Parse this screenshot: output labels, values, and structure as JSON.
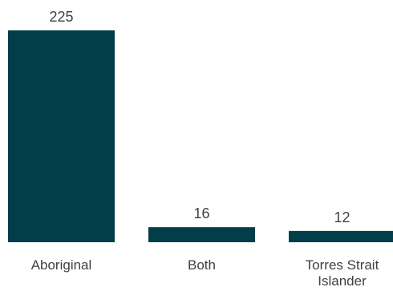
{
  "chart_data": {
    "type": "bar",
    "categories": [
      "Aboriginal",
      "Both",
      "Torres Strait Islander"
    ],
    "category_lines": [
      [
        "Aboriginal"
      ],
      [
        "Both"
      ],
      [
        "Torres Strait",
        "Islander"
      ]
    ],
    "values": [
      225,
      16,
      12
    ],
    "data_labels": [
      "225",
      "16",
      "12"
    ],
    "title": "",
    "xlabel": "",
    "ylabel": "",
    "ylim": [
      0,
      225
    ],
    "grid": false,
    "legend": "none",
    "bar_color": "#023e4a"
  }
}
